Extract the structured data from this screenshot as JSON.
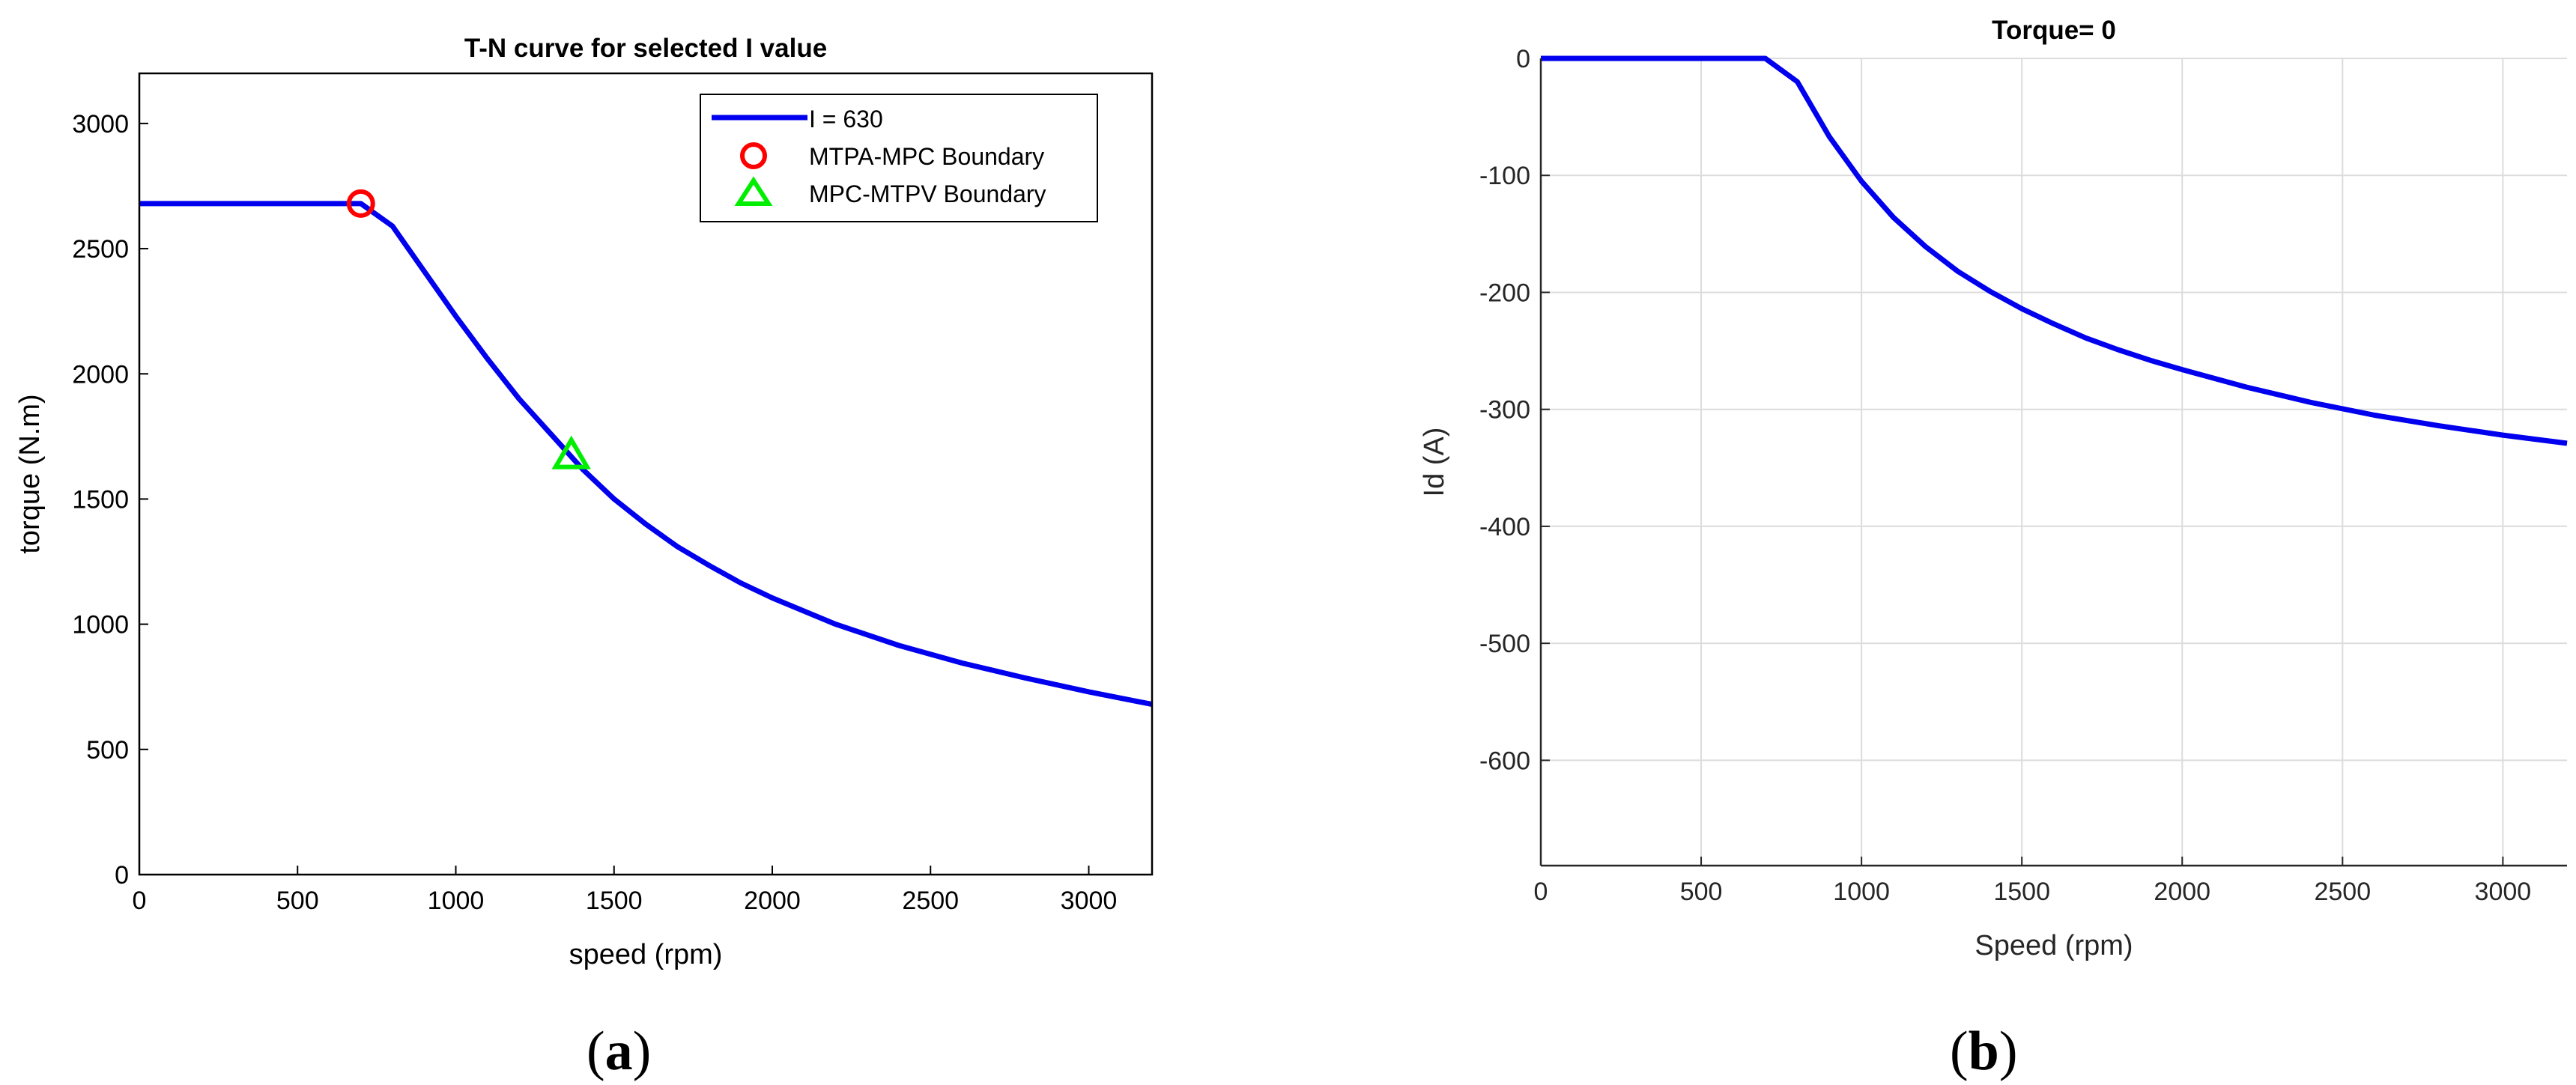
{
  "chart_data": [
    {
      "type": "line",
      "title": "T-N curve for selected I value",
      "xlabel": "speed (rpm)",
      "ylabel": "torque (N.m)",
      "xlim": [
        0,
        3200
      ],
      "ylim": [
        0,
        3200
      ],
      "xticks": [
        0,
        500,
        1000,
        1500,
        2000,
        2500,
        3000
      ],
      "yticks": [
        0,
        500,
        1000,
        1500,
        2000,
        2500,
        3000
      ],
      "grid": false,
      "legend_position": "top-right",
      "series": [
        {
          "name": "I = 630",
          "color": "#0000ee",
          "x": [
            0,
            100,
            200,
            300,
            400,
            500,
            600,
            700,
            800,
            900,
            1000,
            1100,
            1200,
            1300,
            1350,
            1400,
            1500,
            1600,
            1700,
            1800,
            1900,
            2000,
            2200,
            2400,
            2600,
            2800,
            3000,
            3200
          ],
          "y": [
            2680,
            2680,
            2680,
            2680,
            2680,
            2680,
            2680,
            2680,
            2590,
            2410,
            2230,
            2060,
            1900,
            1760,
            1690,
            1620,
            1500,
            1400,
            1310,
            1235,
            1165,
            1105,
            1000,
            915,
            845,
            785,
            730,
            680
          ]
        }
      ],
      "markers": [
        {
          "name": "MTPA-MPC Boundary",
          "shape": "circle",
          "color": "#ff0000",
          "x": 700,
          "y": 2680
        },
        {
          "name": "MPC-MTPV Boundary",
          "shape": "triangle",
          "color": "#00ee00",
          "x": 1365,
          "y": 1670
        }
      ]
    },
    {
      "type": "line",
      "title": "Torque= 0",
      "xlabel": "Speed (rpm)",
      "ylabel": "Id (A)",
      "xlim": [
        0,
        3200
      ],
      "ylim": [
        -690,
        0
      ],
      "xticks": [
        0,
        500,
        1000,
        1500,
        2000,
        2500,
        3000
      ],
      "yticks": [
        0,
        -100,
        -200,
        -300,
        -400,
        -500,
        -600
      ],
      "grid": true,
      "series": [
        {
          "color": "#0000ee",
          "x": [
            0,
            100,
            200,
            300,
            400,
            500,
            600,
            700,
            800,
            900,
            1000,
            1100,
            1200,
            1300,
            1400,
            1500,
            1600,
            1700,
            1800,
            1900,
            2000,
            2200,
            2400,
            2600,
            2800,
            3000,
            3200
          ],
          "y": [
            0,
            0,
            0,
            0,
            0,
            0,
            0,
            0,
            -20,
            -67,
            -105,
            -136,
            -161,
            -182,
            -199,
            -214,
            -227,
            -239,
            -249,
            -258,
            -266,
            -281,
            -294,
            -305,
            -314,
            -322,
            -329
          ]
        }
      ]
    }
  ],
  "captions": {
    "a": "a",
    "b": "b"
  }
}
